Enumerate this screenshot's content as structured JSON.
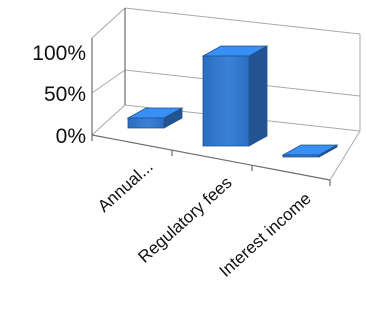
{
  "chart_data": {
    "type": "bar",
    "style": "3d-column",
    "categories": [
      "Annual...",
      "Regulatory fees",
      "Interest income"
    ],
    "values": [
      10,
      90,
      1
    ],
    "value_format": "percent",
    "ylim": [
      0,
      100
    ],
    "yticks": [
      "0%",
      "50%",
      "100%"
    ],
    "bar_color": "#2e75c9",
    "grid": true,
    "legend": "none",
    "title": "",
    "xlabel": "",
    "ylabel": ""
  }
}
